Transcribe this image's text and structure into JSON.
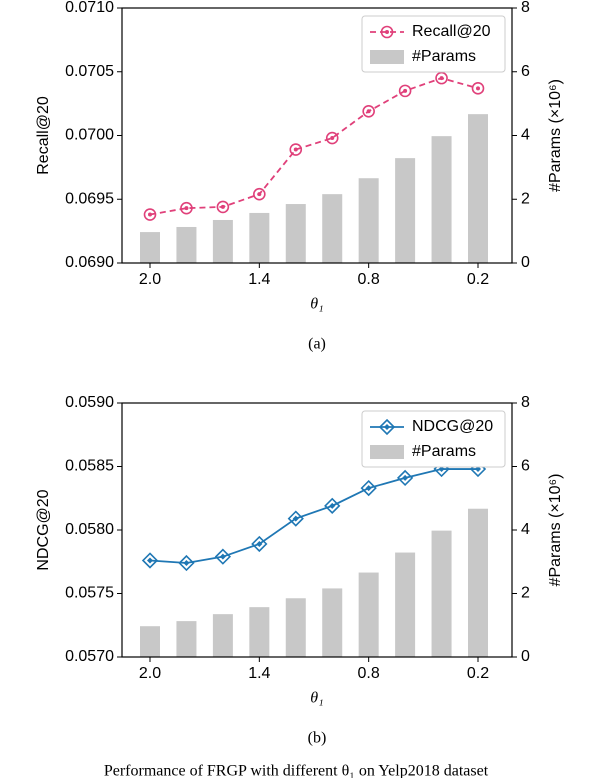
{
  "chart_data": [
    {
      "type": "combo",
      "caption": "(a)",
      "xlabel": "θ₁",
      "ylabel": "Recall@20",
      "y2label": "#Params (×10⁶)",
      "categories": [
        "2.0",
        null,
        null,
        "1.4",
        null,
        null,
        "0.8",
        null,
        null,
        "0.2"
      ],
      "series": [
        {
          "name": "Recall@20",
          "type": "line",
          "color": "#e0407a",
          "marker": "circle",
          "linestyle": "dashed",
          "values": [
            0.06938,
            0.06943,
            0.06944,
            0.06954,
            0.06989,
            0.06998,
            0.07019,
            0.07035,
            0.07045,
            0.07037
          ]
        },
        {
          "name": "#Params",
          "type": "bar",
          "color": "#c8c8c8",
          "axis": "y2",
          "values": [
            0.97,
            1.13,
            1.35,
            1.57,
            1.85,
            2.16,
            2.66,
            3.29,
            3.98,
            4.67
          ]
        }
      ],
      "ylim": [
        0.069,
        0.071
      ],
      "yticks": [
        {
          "value": 0.069,
          "label": "0.0690"
        },
        {
          "value": 0.0695,
          "label": "0.0695"
        },
        {
          "value": 0.07,
          "label": "0.0700"
        },
        {
          "value": 0.0705,
          "label": "0.0705"
        },
        {
          "value": 0.071,
          "label": "0.0710"
        }
      ],
      "y2lim": [
        0,
        8
      ],
      "y2ticks": [
        0,
        2,
        4,
        6,
        8
      ],
      "legend": "upper right"
    },
    {
      "type": "combo",
      "caption": "(b)",
      "xlabel": "θ₁",
      "ylabel": "NDCG@20",
      "y2label": "#Params (×10⁶)",
      "categories": [
        "2.0",
        null,
        null,
        "1.4",
        null,
        null,
        "0.8",
        null,
        null,
        "0.2"
      ],
      "series": [
        {
          "name": "NDCG@20",
          "type": "line",
          "color": "#1f77b4",
          "marker": "diamond",
          "linestyle": "solid",
          "values": [
            0.05776,
            0.05774,
            0.05779,
            0.05789,
            0.05809,
            0.05819,
            0.05833,
            0.05841,
            0.05848,
            0.05848
          ]
        },
        {
          "name": "#Params",
          "type": "bar",
          "color": "#c8c8c8",
          "axis": "y2",
          "values": [
            0.97,
            1.13,
            1.35,
            1.57,
            1.85,
            2.16,
            2.66,
            3.29,
            3.98,
            4.67
          ]
        }
      ],
      "ylim": [
        0.057,
        0.059
      ],
      "yticks": [
        {
          "value": 0.057,
          "label": "0.0570"
        },
        {
          "value": 0.0575,
          "label": "0.0575"
        },
        {
          "value": 0.058,
          "label": "0.0580"
        },
        {
          "value": 0.0585,
          "label": "0.0585"
        },
        {
          "value": 0.059,
          "label": "0.0590"
        }
      ],
      "y2lim": [
        0,
        8
      ],
      "y2ticks": [
        0,
        2,
        4,
        6,
        8
      ],
      "legend": "upper right"
    }
  ],
  "figure_caption": "Performance of FRGP with different θ₁ on Yelp2018 dataset"
}
